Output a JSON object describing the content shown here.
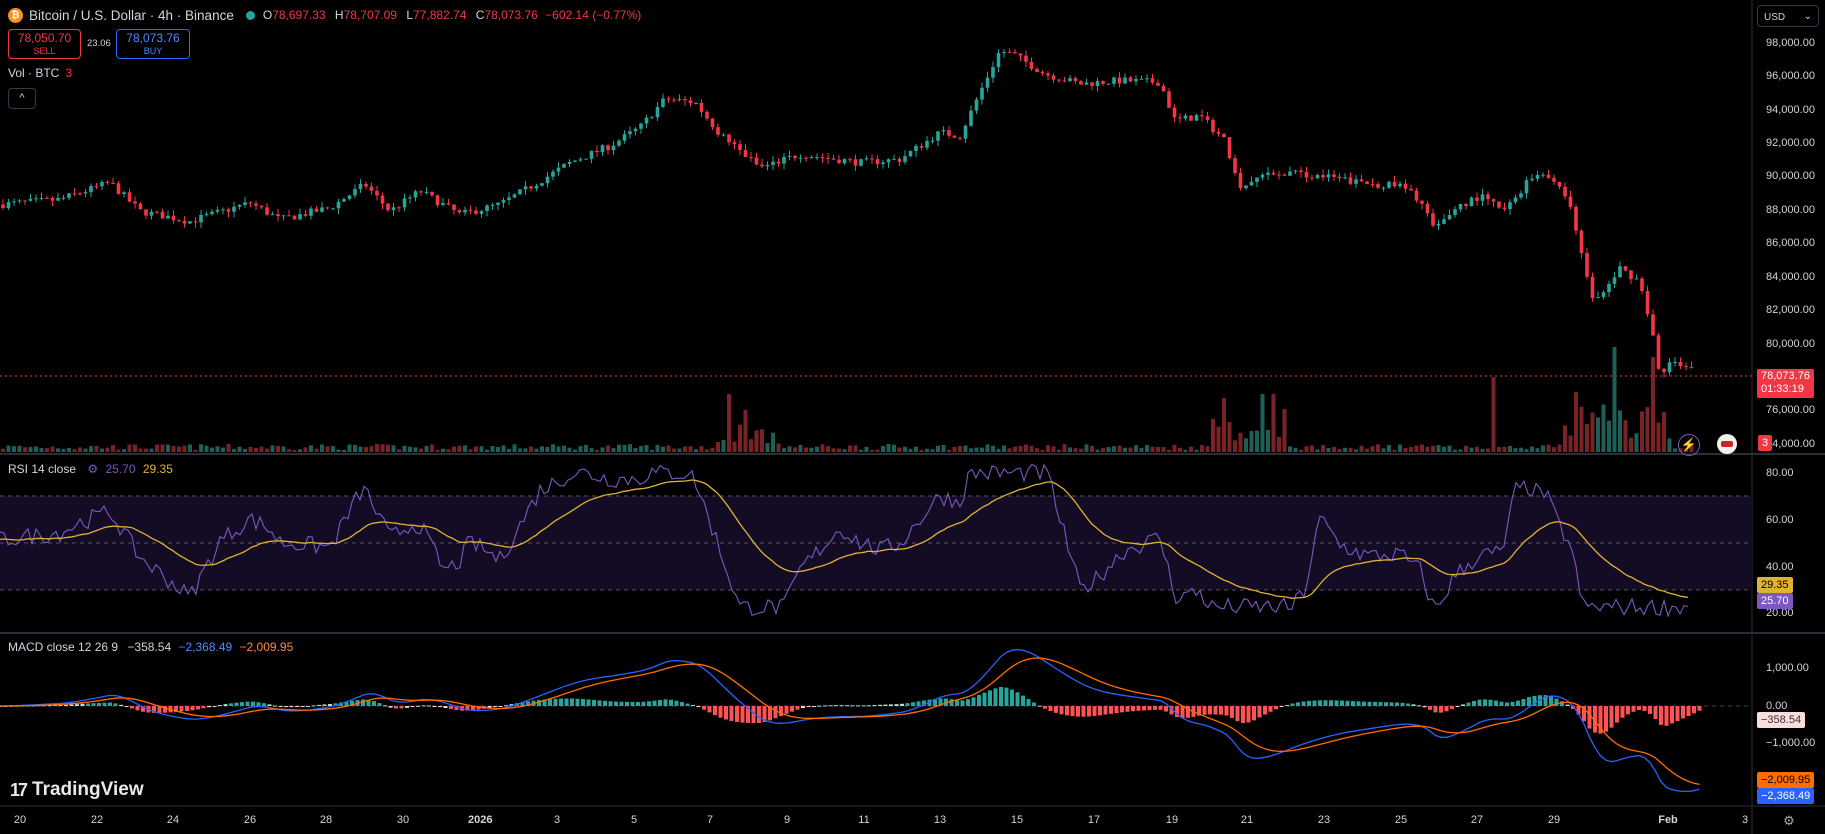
{
  "symbol": {
    "coin_glyph": "₿",
    "title": "Bitcoin / U.S. Dollar · 4h · Binance",
    "open_label": "O",
    "open": "78,697.33",
    "high_label": "H",
    "high": "78,707.09",
    "low_label": "L",
    "low": "77,882.74",
    "close_label": "C",
    "close": "78,073.76",
    "change": "−602.14 (−0.77%)"
  },
  "trade": {
    "sell_price": "78,050.70",
    "sell_label": "SELL",
    "spread": "23.06",
    "buy_price": "78,073.76",
    "buy_label": "BUY"
  },
  "volume_legend": {
    "label": "Vol · BTC",
    "value": "3"
  },
  "collapse_glyph": "^",
  "currency_select": {
    "value": "USD",
    "arrow": "⌄"
  },
  "price_axis": {
    "ticks": [
      "98,000.00",
      "96,000.00",
      "94,000.00",
      "92,000.00",
      "90,000.00",
      "88,000.00",
      "86,000.00",
      "84,000.00",
      "82,000.00",
      "80,000.00",
      "76,000.00",
      "74,000.00"
    ],
    "last_price": "78,073.76",
    "countdown": "01:33:19",
    "volume_badge": "3"
  },
  "rsi": {
    "label": "RSI 14 close",
    "rsi_value": "25.70",
    "ma_value": "29.35",
    "ticks": [
      "80.00",
      "60.00",
      "40.00",
      "20.00"
    ],
    "rsi_color": "#7e57c2",
    "ma_color": "#e0b234"
  },
  "macd": {
    "label": "MACD close 12 26 9",
    "hist_value": "−358.54",
    "macd_value": "−2,368.49",
    "signal_value": "−2,009.95",
    "ticks": [
      "1,000.00",
      "0.00",
      "−1,000.00"
    ],
    "macd_color": "#2962ff",
    "signal_color": "#ff6d00"
  },
  "time_axis": [
    "20",
    "22",
    "24",
    "26",
    "28",
    "30",
    "2026",
    "3",
    "5",
    "7",
    "9",
    "11",
    "13",
    "15",
    "17",
    "19",
    "21",
    "23",
    "25",
    "27",
    "29",
    "Feb",
    "3"
  ],
  "branding": "TradingView",
  "colors": {
    "up": "#26a69a",
    "down": "#f23645",
    "background": "#000000"
  }
}
